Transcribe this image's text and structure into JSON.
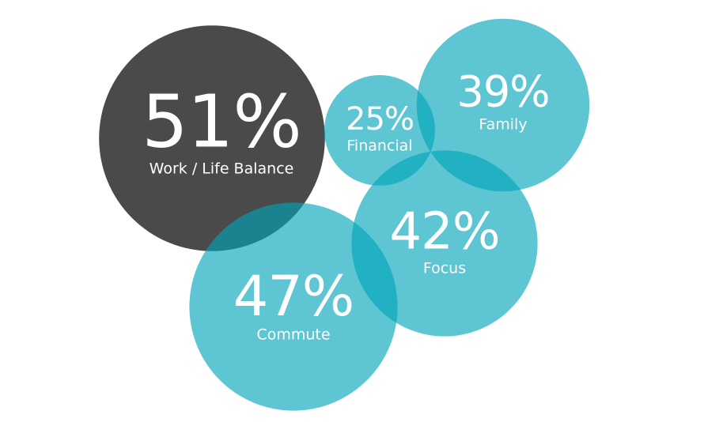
{
  "chart_data": {
    "type": "bubble",
    "categories": [
      "Work / Life Balance",
      "Financial",
      "Family",
      "Focus",
      "Commute"
    ],
    "values": [
      51,
      25,
      39,
      42,
      47
    ],
    "value_labels": [
      "51%",
      "25%",
      "39%",
      "42%",
      "47%"
    ],
    "colors": [
      "#4a4a4a",
      "#00a5b9a1",
      "#00a5b9a1",
      "#00a5b9a1",
      "#00a5b9a1"
    ]
  }
}
